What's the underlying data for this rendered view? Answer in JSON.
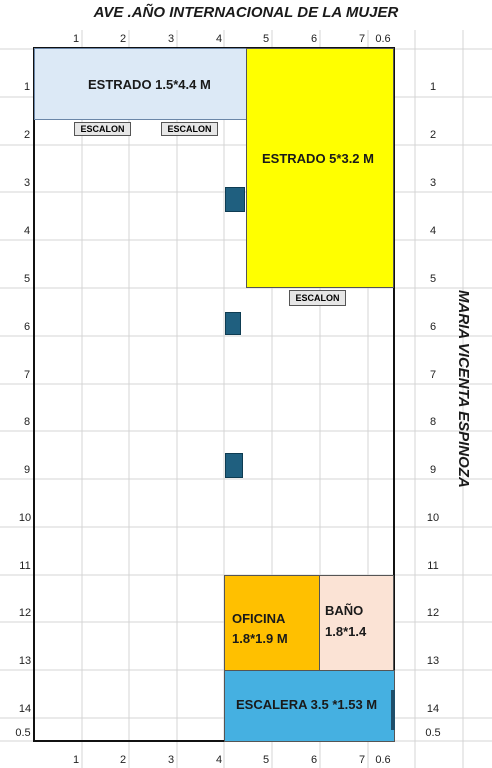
{
  "title": "AVE .AÑO INTERNACIONAL DE LA MUJER",
  "side_label": "MARIA VICENTA ESPINOZA",
  "top_ticks": [
    "1",
    "2",
    "3",
    "4",
    "5",
    "6",
    "7",
    "0.6"
  ],
  "bottom_ticks": [
    "1",
    "2",
    "3",
    "4",
    "5",
    "6",
    "7",
    "0.6"
  ],
  "left_ticks": [
    "1",
    "2",
    "3",
    "4",
    "5",
    "6",
    "7",
    "8",
    "9",
    "10",
    "11",
    "12",
    "13",
    "14",
    "0.5"
  ],
  "right_ticks": [
    "1",
    "2",
    "3",
    "4",
    "5",
    "6",
    "7",
    "8",
    "9",
    "10",
    "11",
    "12",
    "13",
    "14",
    "0.5"
  ],
  "rooms": {
    "estrado_small": {
      "label": "ESTRADO 1.5*4.4 M",
      "color": "#dce9f6"
    },
    "estrado_big": {
      "label": "ESTRADO 5*3.2 M",
      "color": "#ffff00"
    },
    "oficina": {
      "label1": "OFICINA",
      "label2": "1.8*1.9 M",
      "color": "#ffc000"
    },
    "bano": {
      "label1": "BAÑO",
      "label2": "1.8*1.4",
      "color": "#fbe3d5"
    },
    "escalera": {
      "label": "ESCALERA 3.5 *1.53 M",
      "color": "#45b0e1"
    }
  },
  "steps": [
    "ESCALON",
    "ESCALON",
    "ESCALON"
  ]
}
